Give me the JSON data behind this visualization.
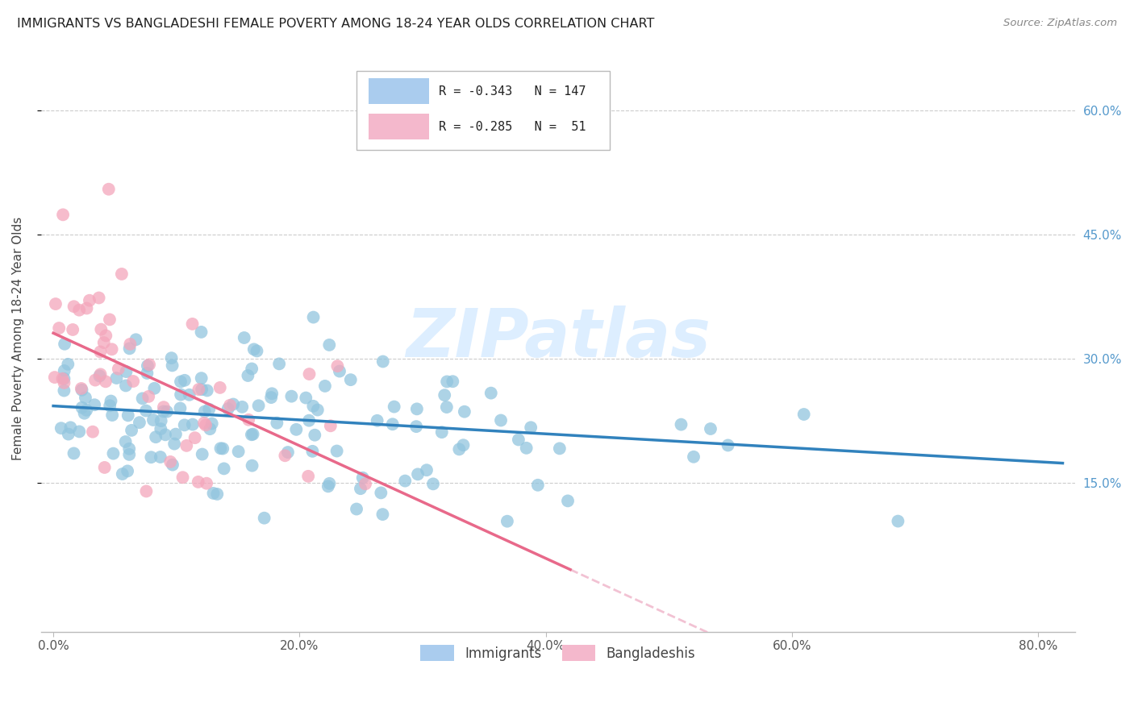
{
  "title": "IMMIGRANTS VS BANGLADESHI FEMALE POVERTY AMONG 18-24 YEAR OLDS CORRELATION CHART",
  "source": "Source: ZipAtlas.com",
  "ylabel": "Female Poverty Among 18-24 Year Olds",
  "immigrants_R": -0.343,
  "immigrants_N": 147,
  "bangladeshis_R": -0.285,
  "bangladeshis_N": 51,
  "immigrants_color": "#92c5de",
  "bangladeshis_color": "#f4a6bb",
  "immigrants_line_color": "#3182bd",
  "bangladeshis_line_color": "#e8698a",
  "bangladeshis_line_dash_color": "#f0b8cc",
  "watermark_color": "#ddeeff",
  "legend_box_immigrants": "#aaccee",
  "legend_box_bangladeshis": "#f4b8cc",
  "xlim_min": -0.01,
  "xlim_max": 0.83,
  "ylim_min": -0.03,
  "ylim_max": 0.68,
  "grid_color": "#cccccc",
  "spine_color": "#bbbbbb"
}
